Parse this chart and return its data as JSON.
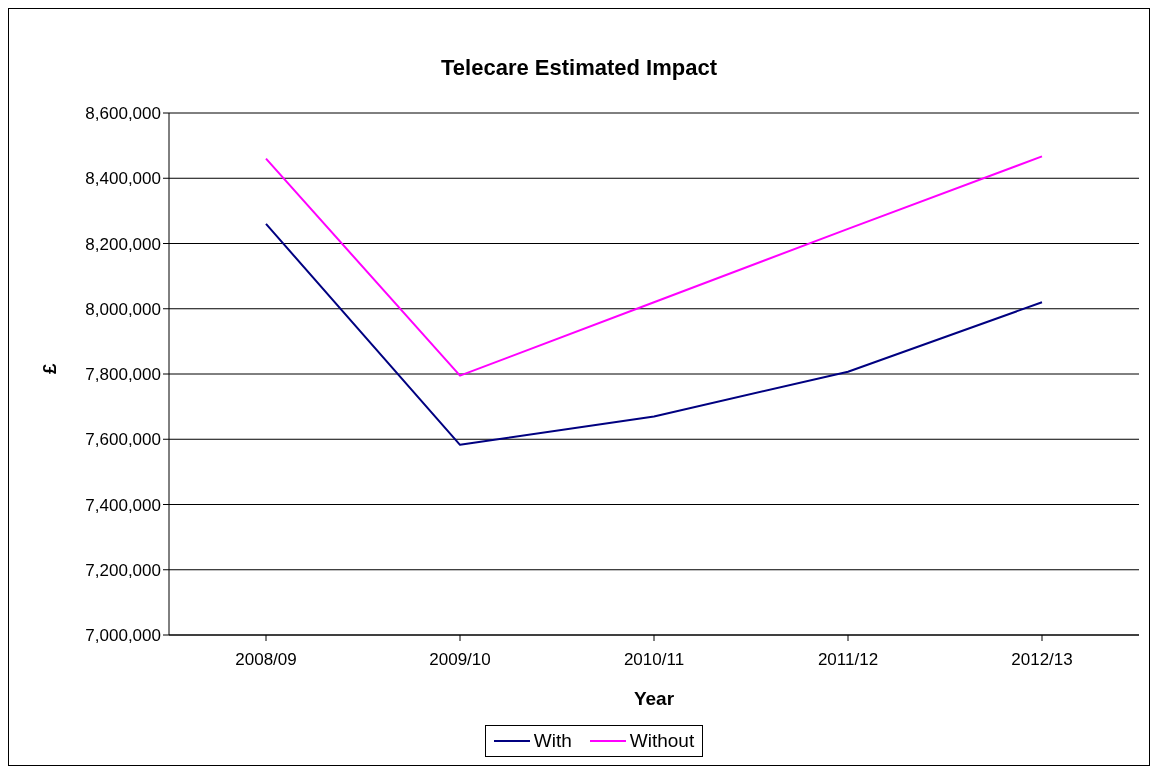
{
  "chart_data": {
    "type": "line",
    "title": "Telecare Estimated Impact",
    "xlabel": "Year",
    "ylabel": "£",
    "categories": [
      "2008/09",
      "2009/10",
      "2010/11",
      "2011/12",
      "2012/13"
    ],
    "series": [
      {
        "name": "With",
        "color": "#000080",
        "values": [
          8260000,
          7583000,
          7670000,
          7807000,
          8020000
        ]
      },
      {
        "name": "Without",
        "color": "#ff00ff",
        "values": [
          8460000,
          7795000,
          8020000,
          8245000,
          8467000
        ]
      }
    ],
    "ylim": [
      7000000,
      8600000
    ],
    "yticks": [
      {
        "value": 7000000,
        "label": "7,000,000"
      },
      {
        "value": 7200000,
        "label": "7,200,000"
      },
      {
        "value": 7400000,
        "label": "7,400,000"
      },
      {
        "value": 7600000,
        "label": "7,600,000"
      },
      {
        "value": 7800000,
        "label": "7,800,000"
      },
      {
        "value": 8000000,
        "label": "8,000,000"
      },
      {
        "value": 8200000,
        "label": "8,200,000"
      },
      {
        "value": 8400000,
        "label": "8,400,000"
      },
      {
        "value": 8600000,
        "label": "8,600,000"
      }
    ],
    "grid": "y",
    "legend": "bottom",
    "marker": "none",
    "line_style": "solid"
  }
}
